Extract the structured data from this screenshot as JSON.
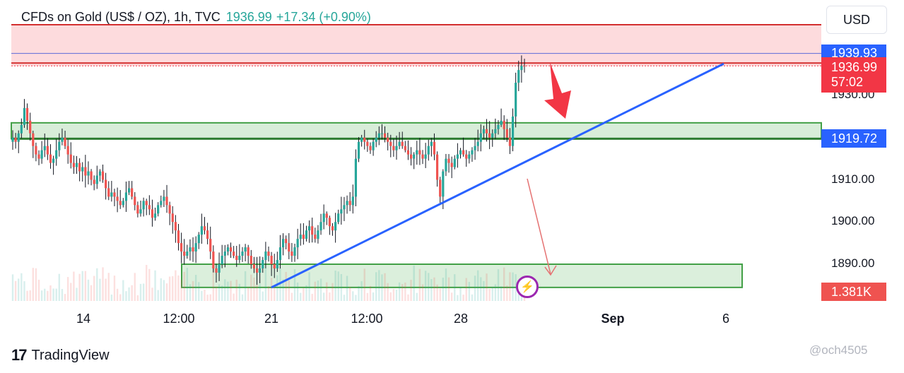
{
  "header": {
    "symbol": "CFDs on Gold (US$ / OZ), 1h, TVC",
    "price": "1936.99",
    "change": "+17.34 (+0.90%)"
  },
  "currency": "USD",
  "chart_data": {
    "type": "candlestick",
    "title": "CFDs on Gold (US$ / OZ), 1h, TVC",
    "ylim": [
      1884,
      1945
    ],
    "y_ticks": [
      "1930.00",
      "1910.00",
      "1900.00",
      "1890.00"
    ],
    "x_ticks": [
      "14",
      "12:00",
      "21",
      "12:00",
      "28",
      "Sep",
      "6"
    ],
    "x_ticks_bold": [
      "Sep"
    ],
    "price_badges": [
      {
        "label": "1939.93",
        "value": 1939.93,
        "color": "#2962ff"
      },
      {
        "label": "1936.99",
        "value": 1936.99,
        "color": "#f23645",
        "sub": "57:02"
      },
      {
        "label": "1919.72",
        "value": 1919.72,
        "color": "#2962ff"
      }
    ],
    "volume_badge": {
      "label": "1.381K",
      "color": "#ef5350"
    },
    "zones": [
      {
        "name": "resistance",
        "from": 1936.99,
        "to": 1945.0,
        "color": "#f23645"
      },
      {
        "name": "support-upper",
        "from": 1919.72,
        "to": 1923.5,
        "color": "#4caf50"
      },
      {
        "name": "support-lower",
        "from": 1884.5,
        "to": 1890.0,
        "color": "#4caf50"
      }
    ],
    "trendline": {
      "from": {
        "x": 384,
        "y": 1884.5
      },
      "to": {
        "x": 1024,
        "y": 1937.5
      },
      "color": "#2962ff"
    },
    "closes": [
      1920,
      1919,
      1921,
      1923,
      1927,
      1924,
      1921,
      1918,
      1916,
      1915,
      1917,
      1918,
      1916,
      1914,
      1915,
      1917,
      1919,
      1920,
      1918,
      1916,
      1914,
      1913,
      1914,
      1912,
      1913,
      1911,
      1912,
      1910,
      1909,
      1911,
      1912,
      1910,
      1908,
      1906,
      1907,
      1906,
      1905,
      1904,
      1905,
      1907,
      1908,
      1906,
      1904,
      1902,
      1903,
      1905,
      1904,
      1903,
      1901,
      1902,
      1904,
      1905,
      1906,
      1904,
      1902,
      1900,
      1898,
      1895,
      1893,
      1892,
      1893,
      1894,
      1893,
      1895,
      1897,
      1899,
      1898,
      1896,
      1893,
      1889,
      1888,
      1890,
      1892,
      1893,
      1894,
      1893,
      1892,
      1891,
      1892,
      1893,
      1894,
      1892,
      1890,
      1889,
      1888,
      1889,
      1891,
      1893,
      1892,
      1890,
      1889,
      1891,
      1894,
      1896,
      1895,
      1893,
      1892,
      1894,
      1896,
      1897,
      1896,
      1898,
      1899,
      1897,
      1896,
      1898,
      1900,
      1902,
      1901,
      1899,
      1898,
      1900,
      1902,
      1903,
      1904,
      1905,
      1904,
      1906,
      1915,
      1919,
      1920,
      1919,
      1918,
      1917,
      1919,
      1920,
      1921,
      1921,
      1920,
      1919,
      1918,
      1917,
      1918,
      1919,
      1918,
      1917,
      1916,
      1915,
      1916,
      1917,
      1916,
      1915,
      1916,
      1918,
      1919,
      1916,
      1910,
      1906,
      1912,
      1915,
      1914,
      1913,
      1915,
      1916,
      1917,
      1916,
      1915,
      1916,
      1917,
      1918,
      1919,
      1921,
      1922,
      1921,
      1920,
      1921,
      1922,
      1923,
      1924,
      1922,
      1920,
      1918,
      1925,
      1933,
      1936,
      1937,
      1936.99
    ]
  },
  "branding": {
    "logo_text": "TradingView",
    "watermark": "@och4505"
  }
}
